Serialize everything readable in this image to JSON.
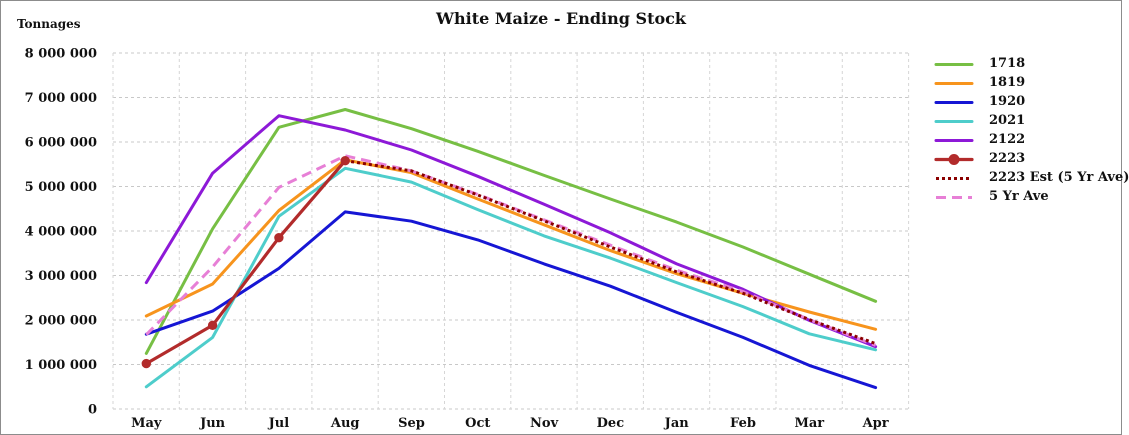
{
  "chart_data": {
    "type": "line",
    "title": "White Maize - Ending Stock",
    "ylabel": "Tonnages",
    "xlabel": "",
    "categories": [
      "May",
      "Jun",
      "Jul",
      "Aug",
      "Sep",
      "Oct",
      "Nov",
      "Dec",
      "Jan",
      "Feb",
      "Mar",
      "Apr"
    ],
    "ylim": [
      0,
      8000000
    ],
    "yticks": [
      0,
      1000000,
      2000000,
      3000000,
      4000000,
      5000000,
      6000000,
      7000000,
      8000000
    ],
    "ytick_labels": [
      "0",
      "1 000 000",
      "2 000 000",
      "3 000 000",
      "4 000 000",
      "5 000 000",
      "6 000 000",
      "7 000 000",
      "8 000 000"
    ],
    "grid": true,
    "legend_position": "right",
    "series": [
      {
        "name": "1718",
        "color": "#77bf44",
        "style": "solid",
        "values": [
          1250000,
          4050000,
          6330000,
          6730000,
          6300000,
          5790000,
          5250000,
          4720000,
          4200000,
          3640000,
          3030000,
          2420000
        ]
      },
      {
        "name": "1819",
        "color": "#f7941d",
        "style": "solid",
        "values": [
          2090000,
          2810000,
          4460000,
          5600000,
          5310000,
          4720000,
          4140000,
          3560000,
          3040000,
          2600000,
          2180000,
          1790000
        ]
      },
      {
        "name": "1920",
        "color": "#1616d4",
        "style": "solid",
        "values": [
          1680000,
          2200000,
          3160000,
          4430000,
          4220000,
          3800000,
          3260000,
          2760000,
          2170000,
          1610000,
          980000,
          480000
        ]
      },
      {
        "name": "2021",
        "color": "#4ecdcb",
        "style": "solid",
        "values": [
          500000,
          1610000,
          4330000,
          5410000,
          5100000,
          4480000,
          3890000,
          3390000,
          2840000,
          2300000,
          1690000,
          1330000
        ]
      },
      {
        "name": "2122",
        "color": "#8d19d7",
        "style": "solid",
        "values": [
          2840000,
          5300000,
          6590000,
          6270000,
          5820000,
          5230000,
          4600000,
          3960000,
          3260000,
          2690000,
          1990000,
          1400000
        ]
      },
      {
        "name": "2223",
        "color": "#b22b2b",
        "style": "marker",
        "values": [
          1020000,
          1880000,
          3850000,
          5580000,
          null,
          null,
          null,
          null,
          null,
          null,
          null,
          null
        ]
      },
      {
        "name": "2223 Est (5 Yr Ave)",
        "color": "#8b0000",
        "style": "dotted",
        "values": [
          null,
          null,
          null,
          5580000,
          5350000,
          4810000,
          4230000,
          3640000,
          3080000,
          2600000,
          2010000,
          1470000
        ]
      },
      {
        "name": "5 Yr Ave",
        "color": "#e77fd6",
        "style": "dashed",
        "values": [
          1670000,
          3190000,
          4980000,
          5690000,
          5350000,
          4820000,
          4250000,
          3680000,
          3120000,
          2640000,
          2010000,
          1430000
        ]
      }
    ]
  }
}
